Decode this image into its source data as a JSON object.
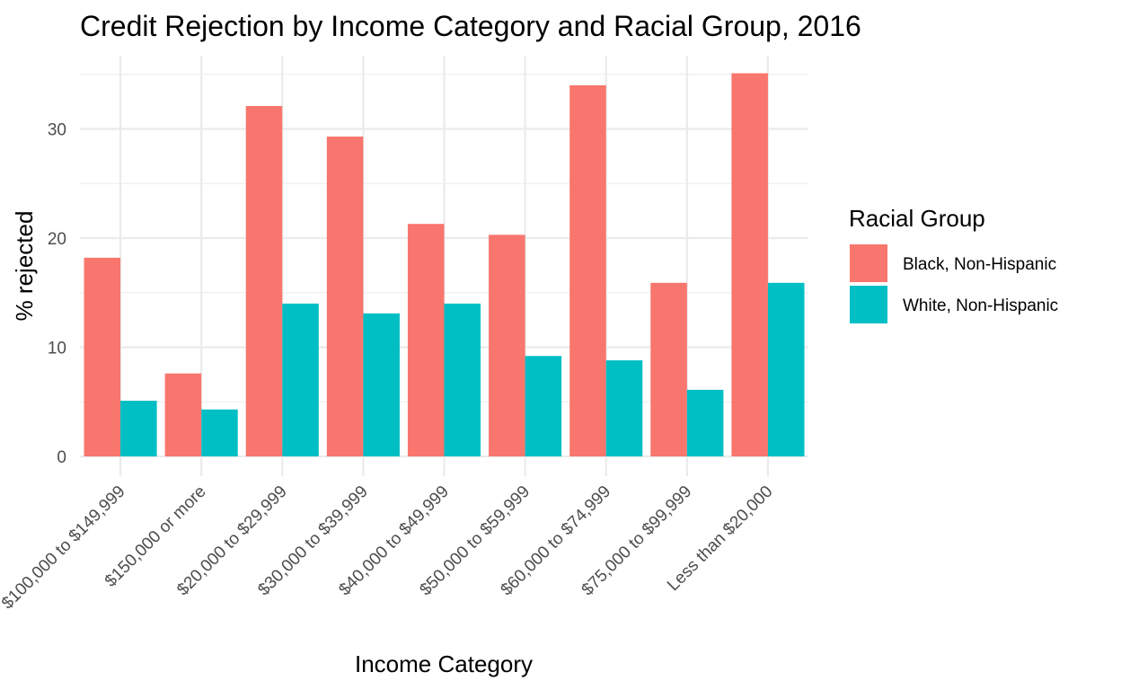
{
  "chart_data": {
    "type": "bar",
    "title": "Credit Rejection by Income Category and Racial Group, 2016",
    "xlabel": "Income Category",
    "ylabel": "% rejected",
    "categories": [
      "$100,000 to $149,999",
      "$150,000 or more",
      "$20,000 to $29,999",
      "$30,000 to $39,999",
      "$40,000 to $49,999",
      "$50,000 to $59,999",
      "$60,000 to $74,999",
      "$75,000 to $99,999",
      "Less than $20,000"
    ],
    "series": [
      {
        "name": "Black, Non-Hispanic",
        "color": "#F8766D",
        "values": [
          18.2,
          7.6,
          32.1,
          29.3,
          21.3,
          20.3,
          34.0,
          15.9,
          35.1
        ]
      },
      {
        "name": "White, Non-Hispanic",
        "color": "#00BFC4",
        "values": [
          5.1,
          4.3,
          14.0,
          13.1,
          14.0,
          9.2,
          8.8,
          6.1,
          15.9
        ]
      }
    ],
    "yticks": [
      0,
      10,
      20,
      30
    ],
    "ylim": [
      0,
      36.8
    ],
    "grid": true,
    "legend": {
      "title": "Racial Group",
      "position": "right"
    }
  }
}
